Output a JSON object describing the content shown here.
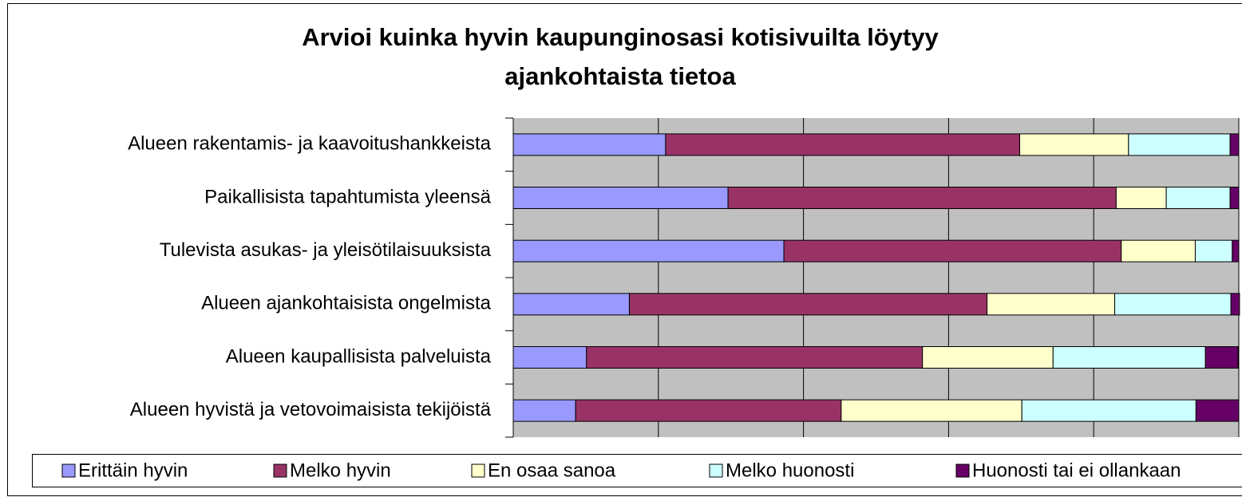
{
  "chart_data": {
    "type": "stacked_bar_horizontal_100",
    "title": "Arvioi kuinka hyvin kaupunginosasi kotisivuilta löytyy ajankohtaista tietoa",
    "categories": [
      "Alueen rakentamis- ja kaavoitushankkeista",
      "Paikallisista tapahtumista yleensä",
      "Tulevista asukas- ja yleisötilaisuuksista",
      "Alueen ajankohtaisista ongelmista",
      "Alueen kaupallisista palveluista",
      "Alueen hyvistä ja vetovoimaisista tekijöistä"
    ],
    "series": [
      {
        "name": "Erittäin hyvin",
        "color": "#9999ff",
        "values": [
          21.0,
          29.6,
          37.3,
          16.0,
          10.1,
          8.6
        ]
      },
      {
        "name": "Melko hyvin",
        "color": "#993366",
        "values": [
          48.8,
          53.5,
          46.5,
          49.3,
          46.3,
          36.6
        ]
      },
      {
        "name": "En osaa sanoa",
        "color": "#ffffcc",
        "values": [
          15.0,
          6.9,
          10.2,
          17.6,
          18.0,
          24.9
        ]
      },
      {
        "name": "Melko huonosti",
        "color": "#ccffff",
        "values": [
          14.0,
          8.8,
          5.1,
          16.0,
          21.0,
          24.0
        ]
      },
      {
        "name": "Huonosti tai ei ollankaan",
        "color": "#660066",
        "values": [
          1.2,
          1.2,
          0.9,
          1.2,
          4.5,
          5.9
        ]
      }
    ],
    "xlim": [
      0,
      100
    ],
    "xticks": [
      0,
      20,
      40,
      60,
      80,
      100
    ],
    "grid": true,
    "legend": "bottom"
  }
}
